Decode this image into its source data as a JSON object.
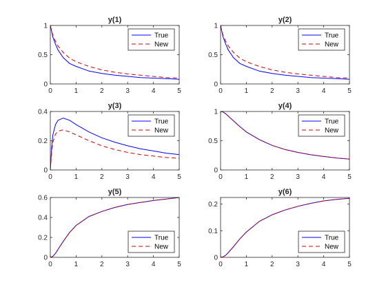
{
  "figure": {
    "background": "#ffffff",
    "axis_color": "#262626",
    "true_color": "#0000ff",
    "new_color": "#cc0000"
  },
  "chart_data": [
    {
      "type": "line",
      "title": "y(1)",
      "xlim": [
        0,
        5
      ],
      "ylim": [
        0,
        1
      ],
      "xticks": [
        0,
        1,
        2,
        3,
        4,
        5
      ],
      "yticks": [
        0,
        0.5,
        1
      ],
      "yticklabels": [
        "0",
        "0.5",
        "1"
      ],
      "legend_position": "top-right",
      "x": [
        0,
        0.1,
        0.2,
        0.3,
        0.5,
        0.75,
        1,
        1.5,
        2,
        2.5,
        3,
        3.5,
        4,
        4.5,
        5
      ],
      "series": [
        {
          "name": "True",
          "style": "solid",
          "values": [
            1.0,
            0.8,
            0.68,
            0.58,
            0.45,
            0.35,
            0.3,
            0.22,
            0.18,
            0.15,
            0.13,
            0.11,
            0.1,
            0.09,
            0.08
          ]
        },
        {
          "name": "New",
          "style": "dashed",
          "values": [
            1.0,
            0.83,
            0.73,
            0.65,
            0.54,
            0.44,
            0.38,
            0.3,
            0.24,
            0.2,
            0.17,
            0.15,
            0.13,
            0.11,
            0.1
          ]
        }
      ]
    },
    {
      "type": "line",
      "title": "y(2)",
      "xlim": [
        0,
        5
      ],
      "ylim": [
        0,
        1
      ],
      "xticks": [
        0,
        1,
        2,
        3,
        4,
        5
      ],
      "yticks": [
        0,
        0.5,
        1
      ],
      "yticklabels": [
        "0",
        "0.5",
        "1"
      ],
      "legend_position": "top-right",
      "x": [
        0,
        0.1,
        0.2,
        0.3,
        0.5,
        0.75,
        1,
        1.5,
        2,
        2.5,
        3,
        3.5,
        4,
        4.5,
        5
      ],
      "series": [
        {
          "name": "True",
          "style": "solid",
          "values": [
            1.0,
            0.8,
            0.68,
            0.58,
            0.45,
            0.35,
            0.3,
            0.22,
            0.18,
            0.15,
            0.13,
            0.11,
            0.1,
            0.09,
            0.08
          ]
        },
        {
          "name": "New",
          "style": "dashed",
          "values": [
            1.0,
            0.83,
            0.73,
            0.65,
            0.54,
            0.44,
            0.38,
            0.3,
            0.24,
            0.2,
            0.17,
            0.15,
            0.13,
            0.11,
            0.1
          ]
        }
      ]
    },
    {
      "type": "line",
      "title": "y(3)",
      "xlim": [
        0,
        5
      ],
      "ylim": [
        0,
        0.4
      ],
      "xticks": [
        0,
        1,
        2,
        3,
        4,
        5
      ],
      "yticks": [
        0,
        0.2,
        0.4
      ],
      "yticklabels": [
        "0",
        "0.2",
        "0.4"
      ],
      "legend_position": "top-right",
      "x": [
        0,
        0.05,
        0.1,
        0.2,
        0.3,
        0.5,
        0.75,
        1,
        1.5,
        2,
        2.5,
        3,
        3.5,
        4,
        4.5,
        5
      ],
      "series": [
        {
          "name": "True",
          "style": "solid",
          "values": [
            0,
            0.15,
            0.24,
            0.31,
            0.34,
            0.355,
            0.34,
            0.31,
            0.26,
            0.22,
            0.19,
            0.165,
            0.145,
            0.13,
            0.115,
            0.105
          ]
        },
        {
          "name": "New",
          "style": "dashed",
          "values": [
            0,
            0.12,
            0.19,
            0.245,
            0.265,
            0.275,
            0.26,
            0.24,
            0.2,
            0.165,
            0.14,
            0.12,
            0.105,
            0.095,
            0.085,
            0.08
          ]
        }
      ]
    },
    {
      "type": "line",
      "title": "y(4)",
      "xlim": [
        0,
        5
      ],
      "ylim": [
        0,
        1
      ],
      "xticks": [
        0,
        1,
        2,
        3,
        4,
        5
      ],
      "yticks": [
        0,
        0.5,
        1
      ],
      "yticklabels": [
        "0",
        "0.5",
        "1"
      ],
      "legend_position": "top-right",
      "x": [
        0,
        0.1,
        0.2,
        0.3,
        0.5,
        0.75,
        1,
        1.5,
        2,
        2.5,
        3,
        3.5,
        4,
        4.5,
        5
      ],
      "series": [
        {
          "name": "True",
          "style": "solid",
          "values": [
            1.0,
            0.99,
            0.96,
            0.92,
            0.84,
            0.74,
            0.65,
            0.52,
            0.42,
            0.35,
            0.3,
            0.26,
            0.23,
            0.205,
            0.185
          ]
        },
        {
          "name": "New",
          "style": "dashed",
          "values": [
            1.0,
            0.99,
            0.96,
            0.92,
            0.84,
            0.74,
            0.65,
            0.52,
            0.42,
            0.35,
            0.3,
            0.26,
            0.23,
            0.205,
            0.185
          ]
        }
      ]
    },
    {
      "type": "line",
      "title": "y(5)",
      "xlim": [
        0,
        5
      ],
      "ylim": [
        0,
        0.6
      ],
      "xticks": [
        0,
        1,
        2,
        3,
        4,
        5
      ],
      "yticks": [
        0,
        0.2,
        0.4,
        0.6
      ],
      "yticklabels": [
        "0",
        "0.2",
        "0.4",
        "0.6"
      ],
      "legend_position": "bottom-right",
      "x": [
        0,
        0.1,
        0.2,
        0.3,
        0.5,
        0.75,
        1,
        1.5,
        2,
        2.5,
        3,
        3.5,
        4,
        4.5,
        5
      ],
      "series": [
        {
          "name": "True",
          "style": "solid",
          "values": [
            0,
            0.01,
            0.04,
            0.08,
            0.16,
            0.25,
            0.32,
            0.41,
            0.46,
            0.5,
            0.53,
            0.55,
            0.57,
            0.585,
            0.6
          ]
        },
        {
          "name": "New",
          "style": "dashed",
          "values": [
            0,
            0.01,
            0.04,
            0.08,
            0.16,
            0.25,
            0.32,
            0.41,
            0.46,
            0.5,
            0.53,
            0.55,
            0.57,
            0.585,
            0.6
          ]
        }
      ]
    },
    {
      "type": "line",
      "title": "y(6)",
      "xlim": [
        0,
        5
      ],
      "ylim": [
        0,
        0.225
      ],
      "xticks": [
        0,
        1,
        2,
        3,
        4,
        5
      ],
      "yticks": [
        0,
        0.1,
        0.2
      ],
      "yticklabels": [
        "0",
        "0.1",
        "0.2"
      ],
      "legend_position": "bottom-right",
      "x": [
        0,
        0.1,
        0.2,
        0.3,
        0.5,
        0.75,
        1,
        1.5,
        2,
        2.5,
        3,
        3.5,
        4,
        4.5,
        5
      ],
      "series": [
        {
          "name": "True",
          "style": "solid",
          "values": [
            0,
            0.002,
            0.008,
            0.018,
            0.04,
            0.07,
            0.095,
            0.135,
            0.16,
            0.178,
            0.192,
            0.203,
            0.212,
            0.218,
            0.222
          ]
        },
        {
          "name": "New",
          "style": "dashed",
          "values": [
            0,
            0.002,
            0.008,
            0.018,
            0.04,
            0.07,
            0.095,
            0.135,
            0.16,
            0.178,
            0.192,
            0.203,
            0.212,
            0.218,
            0.222
          ]
        }
      ]
    }
  ]
}
